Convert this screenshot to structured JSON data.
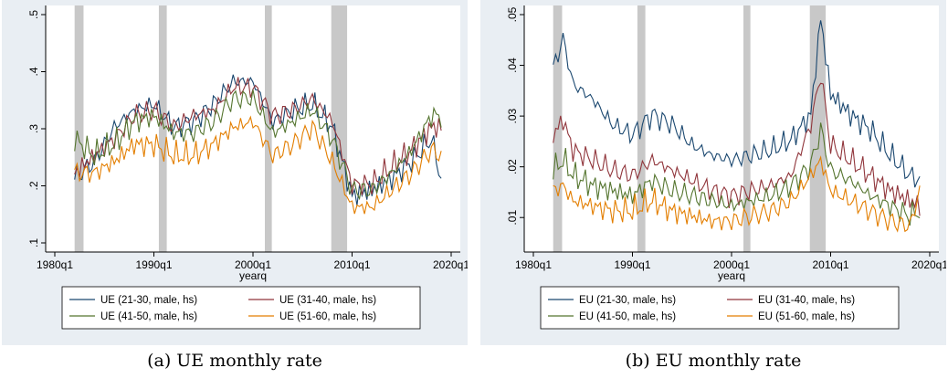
{
  "captions": {
    "a": "(a) UE monthly rate",
    "b": "(b) EU monthly rate"
  },
  "colors": {
    "panel_bg": "#e9eef3",
    "plot_bg": "#ffffff",
    "recession": "#c8c8c8",
    "s1": "#1a476f",
    "s2": "#90353b",
    "s3": "#55752f",
    "s4": "#e37e00"
  },
  "recessions": [
    [
      1982.0,
      1982.9
    ],
    [
      1990.5,
      1991.3
    ],
    [
      2001.2,
      2001.9
    ],
    [
      2007.9,
      2009.5
    ]
  ],
  "chart_data": [
    {
      "type": "line",
      "xlabel": "yearq",
      "ylabel": "",
      "xlim": [
        1980,
        2020
      ],
      "ylim": [
        0.1,
        0.5
      ],
      "xticks": [
        "1980q1",
        "1990q1",
        "2000q1",
        "2010q1",
        "2020q1"
      ],
      "yticks": [
        ".1",
        ".2",
        ".3",
        ".4",
        ".5"
      ],
      "legend_position": "bottom",
      "x": [
        1982,
        1984,
        1986,
        1988,
        1990,
        1992,
        1994,
        1996,
        1998,
        2000,
        2002,
        2004,
        2006,
        2008,
        2010,
        2012,
        2014,
        2016,
        2018,
        2019
      ],
      "series": [
        {
          "name": "UE (21-30, male, hs)",
          "values": [
            0.21,
            0.24,
            0.3,
            0.33,
            0.34,
            0.3,
            0.31,
            0.34,
            0.38,
            0.38,
            0.31,
            0.33,
            0.34,
            0.3,
            0.18,
            0.19,
            0.21,
            0.24,
            0.28,
            0.21
          ]
        },
        {
          "name": "UE (31-40, male, hs)",
          "values": [
            0.22,
            0.25,
            0.28,
            0.32,
            0.33,
            0.3,
            0.32,
            0.33,
            0.37,
            0.37,
            0.32,
            0.33,
            0.35,
            0.31,
            0.2,
            0.2,
            0.23,
            0.26,
            0.3,
            0.3
          ]
        },
        {
          "name": "UE (41-50, male, hs)",
          "values": [
            0.28,
            0.25,
            0.27,
            0.31,
            0.32,
            0.29,
            0.29,
            0.31,
            0.35,
            0.35,
            0.29,
            0.31,
            0.33,
            0.28,
            0.19,
            0.19,
            0.22,
            0.26,
            0.32,
            0.32
          ]
        },
        {
          "name": "UE (51-60, male, hs)",
          "values": [
            0.22,
            0.22,
            0.24,
            0.27,
            0.27,
            0.25,
            0.25,
            0.27,
            0.3,
            0.31,
            0.25,
            0.27,
            0.3,
            0.24,
            0.16,
            0.16,
            0.19,
            0.22,
            0.26,
            0.25
          ]
        }
      ]
    },
    {
      "type": "line",
      "xlabel": "yearq",
      "ylabel": "",
      "xlim": [
        1980,
        2020
      ],
      "ylim": [
        0.005,
        0.05
      ],
      "xticks": [
        "1980q1",
        "1990q1",
        "2000q1",
        "2010q1",
        "2020q1"
      ],
      "yticks": [
        ".01",
        ".02",
        ".03",
        ".04",
        ".05"
      ],
      "legend_position": "bottom",
      "x": [
        1982,
        1983,
        1984,
        1986,
        1988,
        1990,
        1992,
        1994,
        1996,
        1998,
        2000,
        2002,
        2004,
        2006,
        2008,
        2009,
        2010,
        2012,
        2014,
        2016,
        2018,
        2019
      ],
      "series": [
        {
          "name": "EU (21-30, male, hs)",
          "values": [
            0.039,
            0.045,
            0.036,
            0.033,
            0.028,
            0.026,
            0.03,
            0.028,
            0.024,
            0.022,
            0.021,
            0.022,
            0.023,
            0.025,
            0.03,
            0.049,
            0.034,
            0.03,
            0.027,
            0.022,
            0.018,
            0.017
          ]
        },
        {
          "name": "EU (31-40, male, hs)",
          "values": [
            0.026,
            0.029,
            0.023,
            0.021,
            0.019,
            0.018,
            0.021,
            0.019,
            0.017,
            0.015,
            0.014,
            0.015,
            0.016,
            0.018,
            0.028,
            0.038,
            0.024,
            0.021,
            0.018,
            0.015,
            0.013,
            0.012
          ]
        },
        {
          "name": "EU (41-50, male, hs)",
          "values": [
            0.019,
            0.021,
            0.018,
            0.016,
            0.015,
            0.014,
            0.017,
            0.015,
            0.014,
            0.013,
            0.012,
            0.013,
            0.014,
            0.016,
            0.02,
            0.027,
            0.019,
            0.017,
            0.014,
            0.012,
            0.01,
            0.011
          ]
        },
        {
          "name": "EU (51-60, male, hs)",
          "values": [
            0.015,
            0.016,
            0.013,
            0.012,
            0.011,
            0.011,
            0.013,
            0.011,
            0.01,
            0.009,
            0.009,
            0.01,
            0.011,
            0.013,
            0.018,
            0.021,
            0.015,
            0.013,
            0.011,
            0.009,
            0.008,
            0.015
          ]
        }
      ]
    }
  ]
}
